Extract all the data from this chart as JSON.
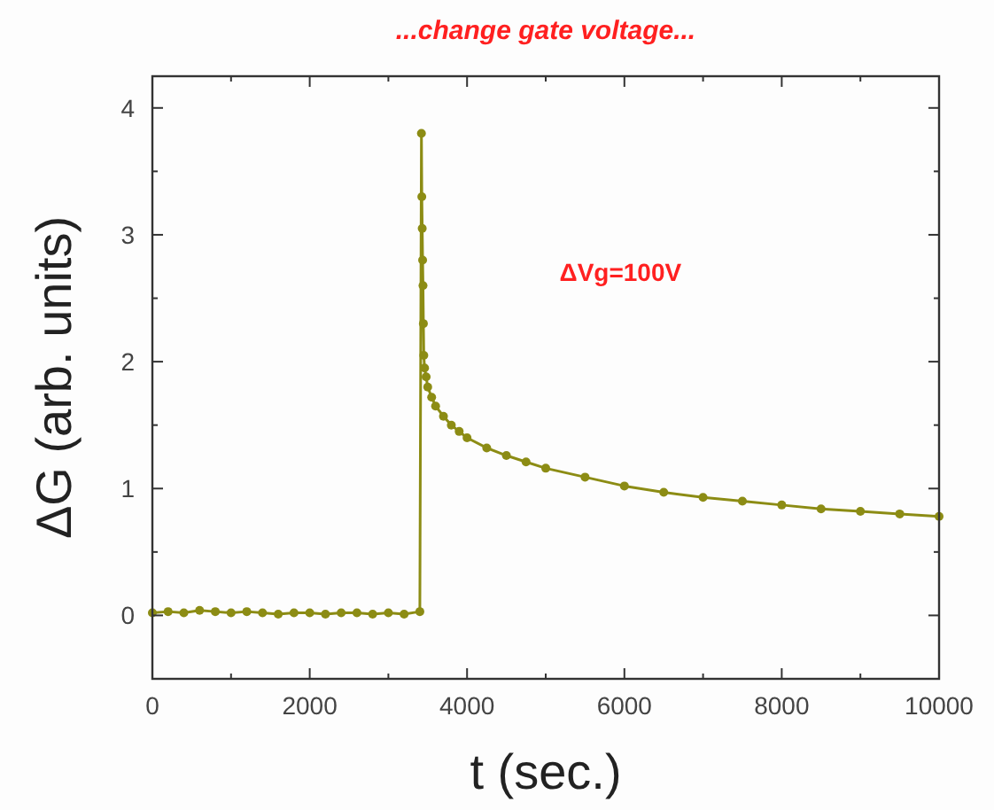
{
  "chart_data": {
    "type": "line",
    "title": "...change gate voltage...",
    "xlabel": "t (sec.)",
    "ylabel": "ΔG (arb. units)",
    "annotations": [
      "ΔVg=100V"
    ],
    "xlim": [
      0,
      10000
    ],
    "ylim": [
      -0.5,
      4.25
    ],
    "xticks": [
      0,
      {
        "value": 1000,
        "label": null
      },
      2000,
      {
        "value": 3000,
        "label": null
      },
      4000,
      {
        "value": 5000,
        "label": null
      },
      6000,
      {
        "value": 7000,
        "label": null
      },
      8000,
      {
        "value": 9000,
        "label": null
      },
      10000
    ],
    "yticks": [
      {
        "value": -0.5,
        "label": null
      },
      0,
      {
        "value": 0.5,
        "label": null
      },
      1,
      {
        "value": 1.5,
        "label": null
      },
      2,
      {
        "value": 2.5,
        "label": null
      },
      3,
      {
        "value": 3.5,
        "label": null
      },
      4
    ],
    "grid": false,
    "marker": "circle",
    "line_style": "solid",
    "series": [
      {
        "color": "#8c8c14",
        "x": [
          0,
          200,
          400,
          600,
          800,
          1000,
          1200,
          1400,
          1600,
          1800,
          2000,
          2200,
          2400,
          2600,
          2800,
          3000,
          3200,
          3400,
          3420,
          3425,
          3430,
          3435,
          3440,
          3445,
          3450,
          3460,
          3480,
          3500,
          3550,
          3600,
          3700,
          3800,
          3900,
          4000,
          4250,
          4500,
          4750,
          5000,
          5500,
          6000,
          6500,
          7000,
          7500,
          8000,
          8500,
          9000,
          9500,
          10000
        ],
        "values": [
          0.02,
          0.03,
          0.02,
          0.04,
          0.03,
          0.02,
          0.03,
          0.02,
          0.01,
          0.02,
          0.02,
          0.01,
          0.02,
          0.02,
          0.01,
          0.02,
          0.01,
          0.03,
          3.8,
          3.3,
          3.05,
          2.8,
          2.6,
          2.3,
          2.05,
          1.95,
          1.88,
          1.8,
          1.72,
          1.65,
          1.57,
          1.5,
          1.45,
          1.4,
          1.32,
          1.26,
          1.21,
          1.16,
          1.09,
          1.02,
          0.97,
          0.93,
          0.9,
          0.87,
          0.84,
          0.82,
          0.8,
          0.78
        ]
      }
    ]
  }
}
